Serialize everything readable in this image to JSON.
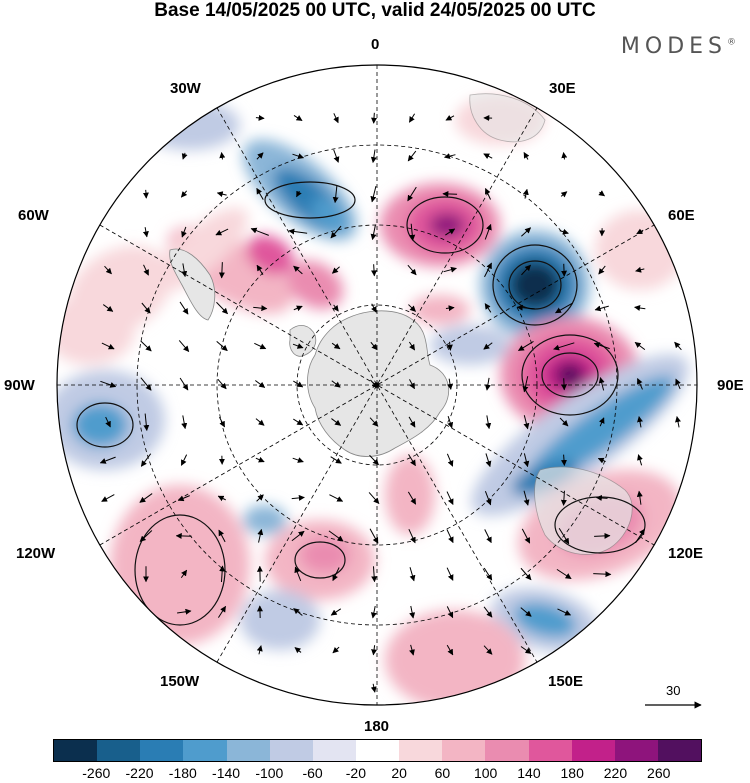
{
  "title": "Base 14/05/2025 00 UTC, valid 24/05/2025 00 UTC",
  "brand": "MODES",
  "brand_mark": "®",
  "longitude_labels": {
    "n0": "0",
    "n30e": "30E",
    "n60e": "60E",
    "n90e": "90E",
    "n120e": "120E",
    "n150e": "150E",
    "n180": "180",
    "n150w": "150W",
    "n120w": "120W",
    "n90w": "90W",
    "n60w": "60W",
    "n30w": "30W"
  },
  "reference_vector_label": "30",
  "colorbar": {
    "ticks": [
      "-260",
      "-220",
      "-180",
      "-140",
      "-100",
      "-60",
      "-20",
      "20",
      "60",
      "100",
      "140",
      "180",
      "220",
      "260"
    ],
    "colors": [
      "#0b2f4e",
      "#185f8c",
      "#2a7db4",
      "#4f9ccd",
      "#8bb6d8",
      "#c0cbe4",
      "#e3e4f2",
      "#ffffff",
      "#f8d8dc",
      "#f3b5c4",
      "#ea8cb0",
      "#e0579c",
      "#c2218a",
      "#8e147c",
      "#52105f"
    ]
  }
}
